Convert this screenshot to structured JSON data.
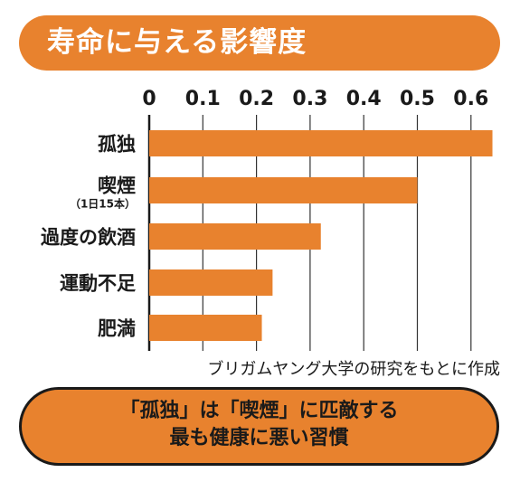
{
  "header": {
    "title": "寿命に与える影響度"
  },
  "chart_data": {
    "type": "bar",
    "orientation": "horizontal",
    "categories": [
      "孤独",
      "喫煙",
      "過度の飲酒",
      "運動不足",
      "肥満"
    ],
    "category_notes": [
      "",
      "（1日15本）",
      "",
      "",
      ""
    ],
    "values": [
      0.64,
      0.5,
      0.32,
      0.23,
      0.21
    ],
    "xlim": [
      0,
      0.65
    ],
    "xticks": [
      "0",
      "0.1",
      "0.2",
      "0.3",
      "0.4",
      "0.5",
      "0.6"
    ],
    "xtick_values": [
      0,
      0.1,
      0.2,
      0.3,
      0.4,
      0.5,
      0.6
    ],
    "grid": true,
    "bar_color": "#e8822e"
  },
  "source": "ブリガムヤング大学の研究をもとに作成",
  "callout": {
    "line1": "「孤独」は「喫煙」に匹敵する",
    "line2": "最も健康に悪い習慣"
  },
  "colors": {
    "accent": "#e8822e",
    "text": "#1a1a1a"
  }
}
